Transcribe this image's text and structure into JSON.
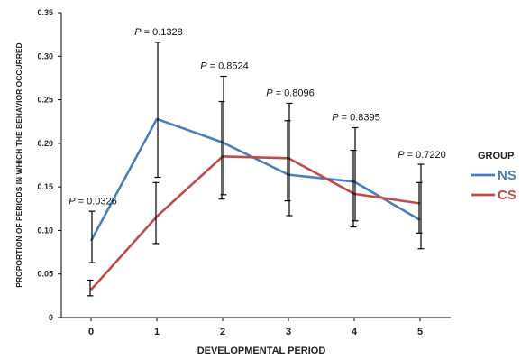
{
  "chart_data": {
    "type": "line",
    "xlabel": "DEVELOPMENTAL PERIOD",
    "ylabel": "PROPORTION OF PERIODS IN WHICH THE BEHAVIOR OCCURRED",
    "x": [
      0,
      1,
      2,
      3,
      4,
      5
    ],
    "x_tick_labels": [
      "0",
      "1",
      "2",
      "3",
      "4",
      "5"
    ],
    "ylim": [
      0,
      0.35
    ],
    "y_ticks": [
      0,
      0.05,
      0.1,
      0.15,
      0.2,
      0.25,
      0.3,
      0.35
    ],
    "y_tick_labels": [
      "0",
      "0.05",
      "0.10",
      "0.15",
      "0.20",
      "0.25",
      "0.30",
      "0.35"
    ],
    "grid": false,
    "legend": {
      "title": "GROUP",
      "placement": "right"
    },
    "series": [
      {
        "name": "NS",
        "color": "#4a7ebb",
        "values": [
          0.088,
          0.228,
          0.201,
          0.164,
          0.156,
          0.112
        ],
        "error_upper": [
          0.122,
          0.316,
          0.277,
          0.246,
          0.218,
          0.176
        ],
        "error_lower": [
          0.063,
          0.161,
          0.141,
          0.117,
          0.111,
          0.079
        ]
      },
      {
        "name": "CS",
        "color": "#be4b48",
        "values": [
          0.032,
          0.116,
          0.185,
          0.183,
          0.142,
          0.131
        ],
        "error_upper": [
          0.043,
          0.155,
          0.248,
          0.226,
          0.192,
          0.155
        ],
        "error_lower": [
          0.025,
          0.085,
          0.136,
          0.134,
          0.104,
          0.097
        ]
      }
    ],
    "annotations": [
      {
        "x": 0,
        "p": "P",
        "text": " = 0.0326",
        "anchor_y": 0.128
      },
      {
        "x": 1,
        "p": "P",
        "text": " = 0.1328",
        "anchor_y": 0.322
      },
      {
        "x": 2,
        "p": "P",
        "text": " = 0.8524",
        "anchor_y": 0.283
      },
      {
        "x": 3,
        "p": "P",
        "text": " = 0.8096",
        "anchor_y": 0.252
      },
      {
        "x": 4,
        "p": "P",
        "text": " = 0.8395",
        "anchor_y": 0.224
      },
      {
        "x": 5,
        "p": "P",
        "text": " = 0.7220",
        "anchor_y": 0.181
      }
    ]
  }
}
